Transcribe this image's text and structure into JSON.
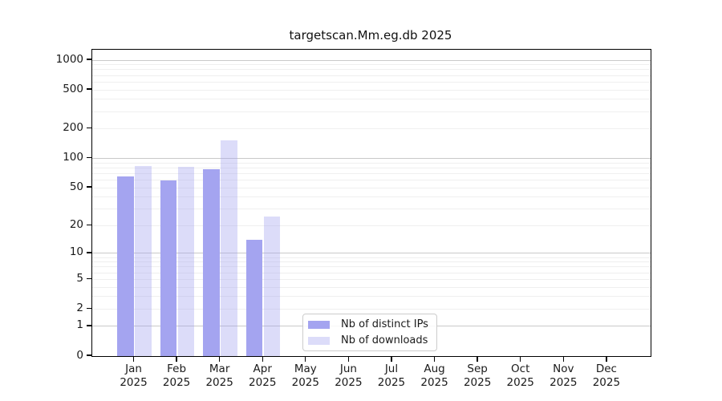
{
  "title": "targetscan.Mm.eg.db 2025",
  "legend": {
    "items": [
      {
        "label": "Nb of distinct IPs",
        "color": "#a4a4f0"
      },
      {
        "label": "Nb of downloads",
        "color": "rgba(164,164,240,0.38)"
      }
    ]
  },
  "chart_data": {
    "type": "bar",
    "title": "targetscan.Mm.eg.db 2025",
    "categories": [
      "Jan",
      "Feb",
      "Mar",
      "Apr",
      "May",
      "Jun",
      "Jul",
      "Aug",
      "Sep",
      "Oct",
      "Nov",
      "Dec"
    ],
    "year": "2025",
    "series": [
      {
        "name": "Nb of distinct IPs",
        "color": "#a4a4f0",
        "values": [
          66,
          59,
          78,
          14,
          0,
          0,
          0,
          0,
          0,
          0,
          0,
          0
        ]
      },
      {
        "name": "Nb of downloads",
        "color": "rgba(164,164,240,0.38)",
        "values": [
          84,
          82,
          152,
          25,
          0,
          0,
          0,
          0,
          0,
          0,
          0,
          0
        ]
      }
    ],
    "yscale": "log1p",
    "ylim": [
      0,
      1278
    ],
    "yticks": [
      0,
      1,
      2,
      5,
      10,
      20,
      50,
      100,
      200,
      500,
      1000
    ],
    "grid": "horizontal, log minor + major decade lines",
    "legend_position": "lower-center",
    "axis_color": "#000000",
    "grid_major_color": "#c9c9c9",
    "grid_minor_color": "#efefef"
  }
}
